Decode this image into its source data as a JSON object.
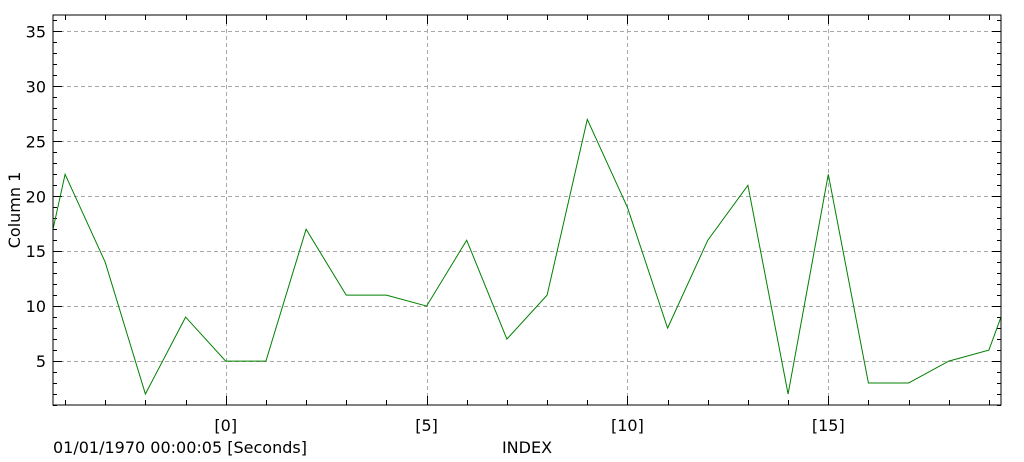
{
  "chart_data": {
    "type": "line",
    "title": "",
    "ylabel": "Column 1",
    "xlabel": "INDEX",
    "time_origin_label": "01/01/1970 00:00:05 [Seconds]",
    "xlim": [
      -4.3,
      19.3
    ],
    "ylim": [
      1.0,
      36.5
    ],
    "grid": true,
    "x_ticks": [
      0,
      5,
      10,
      15
    ],
    "x_tick_labels": [
      "[0]",
      "[5]",
      "[10]",
      "[15]"
    ],
    "y_ticks": [
      5,
      10,
      15,
      20,
      25,
      30,
      35
    ],
    "y_tick_labels": [
      "5",
      "10",
      "15",
      "20",
      "25",
      "30",
      "35"
    ],
    "series": [
      {
        "name": "Column 1",
        "color": "#008000",
        "x": [
          -4.3,
          -4,
          -3,
          -2,
          -1,
          0,
          1,
          2,
          3,
          4,
          5,
          6,
          7,
          8,
          9,
          10,
          11,
          12,
          13,
          14,
          15,
          16,
          17,
          18,
          19,
          19.3
        ],
        "y": [
          17,
          22,
          14,
          2,
          9,
          5,
          5,
          17,
          11,
          11,
          10,
          16,
          7,
          11,
          27,
          19,
          8,
          16,
          21,
          2,
          22,
          3,
          3,
          5,
          6,
          9
        ]
      }
    ]
  }
}
